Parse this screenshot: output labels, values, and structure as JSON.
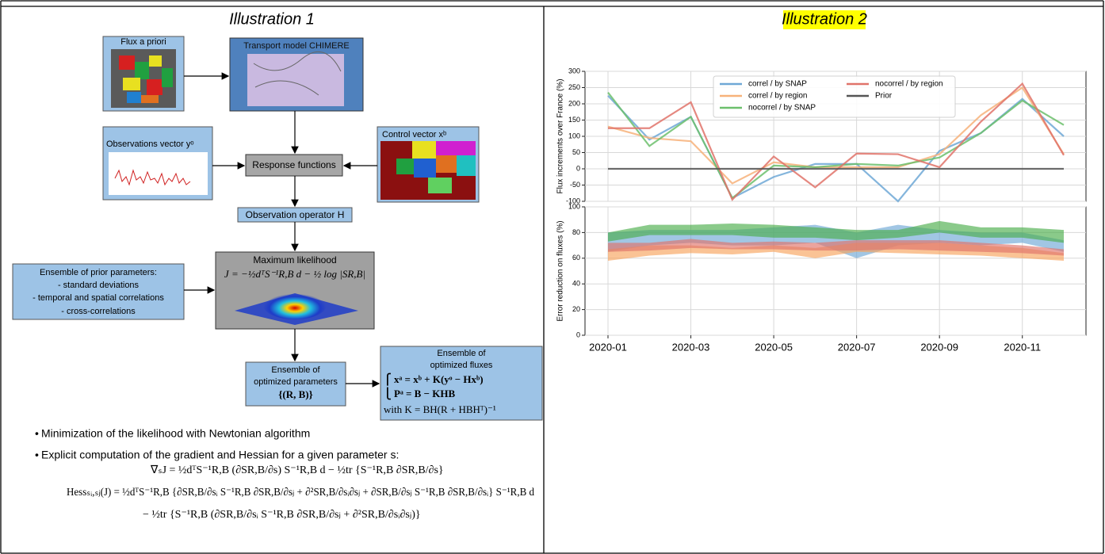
{
  "illustration_1": {
    "title": "Illustration 1",
    "nodes": {
      "flux_prior": "Flux a priori",
      "transport": "Transport model CHIMERE",
      "observations": "Observations vector yᵒ",
      "control": "Control vector xᵇ",
      "response": "Response functions",
      "operator": "Observation operator H",
      "likelihood": [
        "Maximum likelihood",
        "J = −½dᵀS⁻¹R,B d − ½ log |SR,B|"
      ],
      "prior_parameters": [
        "Ensemble of prior parameters:",
        "- standard deviations",
        "- temporal and spatial correlations",
        "- cross-correlations"
      ],
      "optimized_parameters": [
        "Ensemble of",
        "optimized parameters",
        "{(R, B)}"
      ],
      "optimized_fluxes": [
        "Ensemble of",
        "optimized fluxes",
        "⎧ xᵃ = xᵇ + K(yᵒ − Hxᵇ)",
        "⎩ Pᵃ = B − KHB",
        "with K = BH(R + HBHᵀ)⁻¹"
      ]
    },
    "bullets": [
      "Minimization of the likelihood with Newtonian algorithm",
      "Explicit computation of the gradient and Hessian for a given parameter s:"
    ],
    "formulas": [
      "∇ₛJ = ½dᵀS⁻¹R,B (∂SR,B/∂s) S⁻¹R,B d − ½tr {S⁻¹R,B ∂SR,B/∂s}",
      "Hessₛᵢ,ₛⱼ(J) = ½dᵀS⁻¹R,B {∂SR,B/∂sᵢ S⁻¹R,B ∂SR,B/∂sⱼ + ∂²SR,B/∂sᵢ∂sⱼ + ∂SR,B/∂sⱼ S⁻¹R,B ∂SR,B/∂sᵢ} S⁻¹R,B d",
      "− ½tr {S⁻¹R,B (∂SR,B/∂sᵢ S⁻¹R,B ∂SR,B/∂sⱼ + ∂²SR,B/∂sᵢ∂sⱼ)}"
    ]
  },
  "illustration_2": {
    "title": "Illustration 2"
  },
  "chart_data": {
    "type": "line",
    "categories": [
      "2020-01",
      null,
      "2020-03",
      null,
      "2020-05",
      null,
      "2020-07",
      null,
      "2020-09",
      null,
      "2020-11",
      null
    ],
    "grid": true,
    "panels": [
      {
        "type": "line",
        "y_label": "Flux increments over France (%)",
        "ylim": [
          -100,
          300
        ],
        "yticks": [
          -100,
          -50,
          0,
          50,
          100,
          150,
          200,
          250,
          300
        ],
        "legend": "upper center",
        "series": [
          {
            "name": "correl / by SNAP",
            "color": "#6fa8d6",
            "values": [
              225,
              90,
              160,
              -90,
              -25,
              15,
              15,
              -100,
              55,
              110,
              215,
              100
            ]
          },
          {
            "name": "correl / by region",
            "color": "#f7b27a",
            "values": [
              130,
              95,
              85,
              -45,
              20,
              5,
              5,
              5,
              45,
              165,
              250,
              45
            ]
          },
          {
            "name": "nocorrel / by SNAP",
            "color": "#6cc06c",
            "values": [
              235,
              70,
              160,
              -90,
              10,
              5,
              15,
              10,
              35,
              110,
              210,
              135
            ]
          },
          {
            "name": "nocorrel / by region",
            "color": "#e0736a",
            "values": [
              125,
              125,
              205,
              -95,
              38,
              -57,
              47,
              45,
              5,
              145,
              262,
              42
            ]
          },
          {
            "name": "Prior",
            "color": "#555555",
            "values": [
              0,
              0,
              0,
              0,
              0,
              0,
              0,
              0,
              0,
              0,
              0,
              0
            ]
          }
        ]
      },
      {
        "type": "band",
        "y_label": "Error reduction on fluxes (%)",
        "ylim": [
          0,
          100
        ],
        "yticks": [
          0,
          20,
          40,
          60,
          80,
          100
        ],
        "series": [
          {
            "color": "#6fa8d6",
            "low": [
              65,
              70,
              72,
              70,
              70,
              72,
              60,
              70,
              72,
              70,
              72,
              65
            ],
            "high": [
              80,
              82,
              82,
              82,
              84,
              86,
              80,
              86,
              82,
              80,
              80,
              74
            ]
          },
          {
            "color": "#4cae4c",
            "low": [
              73,
              78,
              78,
              78,
              76,
              76,
              74,
              76,
              80,
              76,
              76,
              72
            ],
            "high": [
              80,
              86,
              86,
              87,
              86,
              84,
              82,
              82,
              89,
              84,
              84,
              82
            ]
          },
          {
            "color": "#f7a35c",
            "low": [
              58,
              62,
              64,
              63,
              65,
              60,
              65,
              64,
              63,
              62,
              60,
              58
            ],
            "high": [
              67,
              70,
              70,
              68,
              70,
              68,
              72,
              72,
              72,
              70,
              68,
              64
            ]
          },
          {
            "color": "#e0736a",
            "low": [
              65,
              66,
              68,
              67,
              67,
              66,
              66,
              67,
              66,
              65,
              64,
              62
            ],
            "high": [
              72,
              72,
              75,
              72,
              73,
              72,
              74,
              74,
              74,
              72,
              70,
              67
            ]
          }
        ]
      }
    ]
  }
}
